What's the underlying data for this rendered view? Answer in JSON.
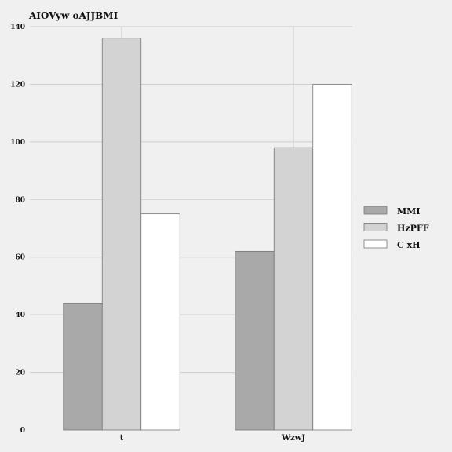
{
  "chart_data": {
    "type": "bar",
    "title": "AIOVyw oAJJBMI",
    "xlabel": "",
    "ylabel": "",
    "categories": [
      "t",
      "WzwJ"
    ],
    "series": [
      {
        "name": "MMI",
        "values": [
          44,
          62
        ],
        "color": "#a9a9a9"
      },
      {
        "name": "HzPFF",
        "values": [
          136,
          98
        ],
        "color": "#d3d3d3"
      },
      {
        "name": "C xH",
        "values": [
          75,
          120
        ],
        "color": "#ffffff"
      }
    ],
    "ylim": [
      0,
      140
    ],
    "yticks": [
      0,
      20,
      40,
      60,
      80,
      100,
      120,
      140
    ],
    "grid": true,
    "legend_position": "right",
    "colors": {
      "background": "#f0f0f0",
      "grid": "#cccccc",
      "bar_stroke": "#777777",
      "text": "#111111"
    }
  }
}
